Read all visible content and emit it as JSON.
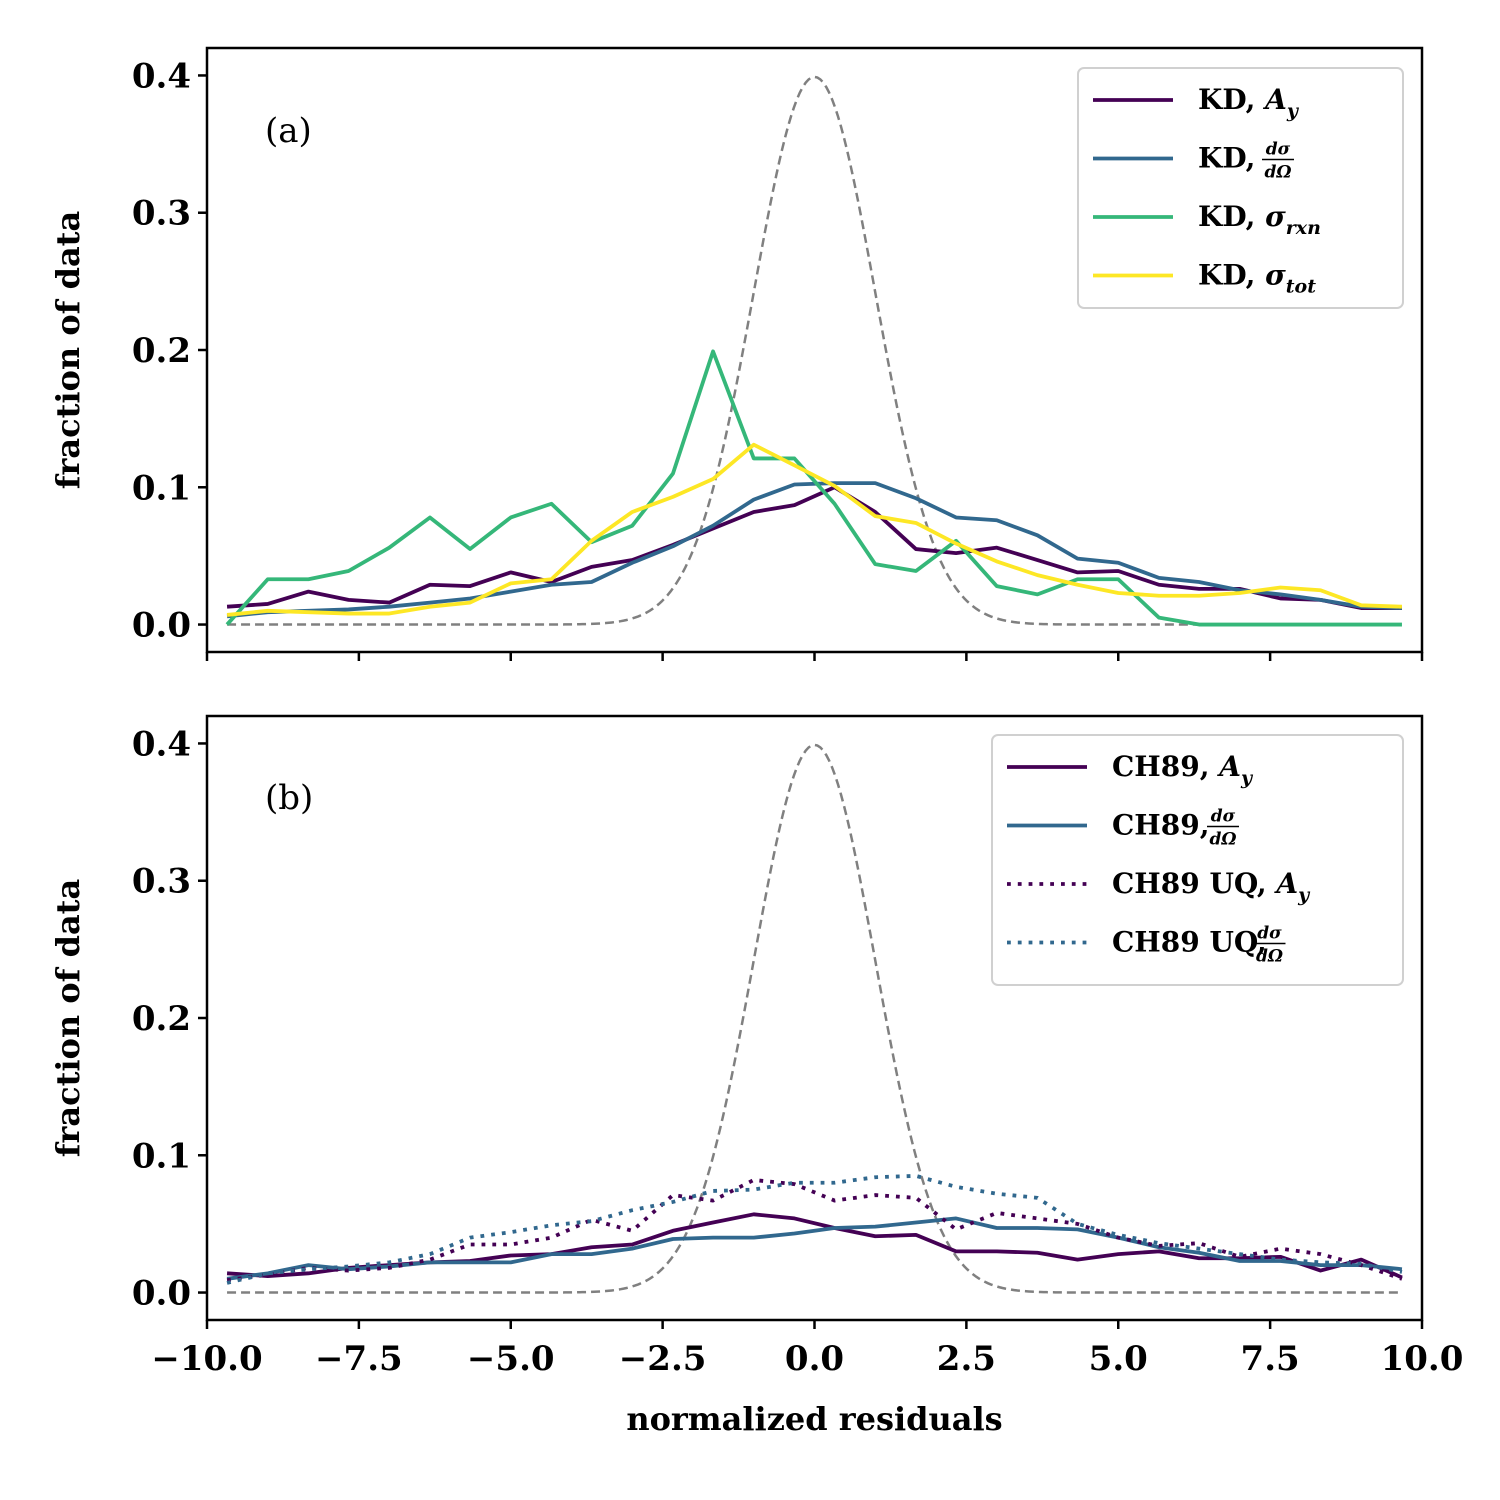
{
  "chart_data": [
    {
      "type": "line",
      "panel_label": "(a)",
      "xlabel": "",
      "ylabel": "fraction of data",
      "xlim": [
        -10,
        10
      ],
      "ylim": [
        -0.02,
        0.42
      ],
      "yticks": [
        0.0,
        0.1,
        0.2,
        0.3,
        0.4
      ],
      "ytick_labels": [
        "0.0",
        "0.1",
        "0.2",
        "0.3",
        "0.4"
      ],
      "xticks": [
        -10,
        -7.5,
        -5,
        -2.5,
        0,
        2.5,
        5,
        7.5,
        10
      ],
      "xtick_labels": [],
      "legend_position": "top-right",
      "series": [
        {
          "name": "KD, A_y",
          "legend": {
            "prefix": "KD, ",
            "sym": "A",
            "sub": "y"
          },
          "color": "#440154",
          "style": "solid",
          "x": [
            -9.67,
            -9.0,
            -8.33,
            -7.67,
            -7.0,
            -6.33,
            -5.67,
            -5.0,
            -4.33,
            -3.67,
            -3.0,
            -2.33,
            -1.67,
            -1.0,
            -0.33,
            0.33,
            1.0,
            1.67,
            2.33,
            3.0,
            3.67,
            4.33,
            5.0,
            5.67,
            6.33,
            7.0,
            7.67,
            8.33,
            9.0,
            9.67
          ],
          "values": [
            0.013,
            0.015,
            0.024,
            0.018,
            0.016,
            0.029,
            0.028,
            0.038,
            0.031,
            0.042,
            0.047,
            0.058,
            0.07,
            0.082,
            0.087,
            0.1,
            0.082,
            0.055,
            0.052,
            0.056,
            0.047,
            0.038,
            0.039,
            0.029,
            0.026,
            0.026,
            0.019,
            0.018,
            0.012,
            0.012
          ]
        },
        {
          "name": "KD, dσ/dΩ",
          "legend": {
            "prefix": "KD, ",
            "frac_num": "dσ",
            "frac_den": "dΩ"
          },
          "color": "#31688e",
          "style": "solid",
          "x": [
            -9.67,
            -9.0,
            -8.33,
            -7.67,
            -7.0,
            -6.33,
            -5.67,
            -5.0,
            -4.33,
            -3.67,
            -3.0,
            -2.33,
            -1.67,
            -1.0,
            -0.33,
            0.33,
            1.0,
            1.67,
            2.33,
            3.0,
            3.67,
            4.33,
            5.0,
            5.67,
            6.33,
            7.0,
            7.67,
            8.33,
            9.0,
            9.67
          ],
          "values": [
            0.006,
            0.009,
            0.01,
            0.011,
            0.013,
            0.016,
            0.019,
            0.024,
            0.029,
            0.031,
            0.045,
            0.057,
            0.072,
            0.091,
            0.102,
            0.103,
            0.103,
            0.092,
            0.078,
            0.076,
            0.065,
            0.048,
            0.045,
            0.034,
            0.031,
            0.025,
            0.022,
            0.018,
            0.013,
            0.012
          ]
        },
        {
          "name": "KD, σ_rxn",
          "legend": {
            "prefix": "KD, ",
            "sym": "σ",
            "sub": "rxn"
          },
          "color": "#35b779",
          "style": "solid",
          "x": [
            -9.67,
            -9.0,
            -8.33,
            -7.67,
            -7.0,
            -6.33,
            -5.67,
            -5.0,
            -4.33,
            -3.67,
            -3.0,
            -2.33,
            -1.67,
            -1.0,
            -0.33,
            0.33,
            1.0,
            1.67,
            2.33,
            3.0,
            3.67,
            4.33,
            5.0,
            5.67,
            6.33,
            7.0,
            7.67,
            8.33,
            9.0,
            9.67
          ],
          "values": [
            0.0,
            0.033,
            0.033,
            0.039,
            0.056,
            0.078,
            0.055,
            0.078,
            0.088,
            0.06,
            0.072,
            0.11,
            0.199,
            0.121,
            0.121,
            0.088,
            0.044,
            0.039,
            0.061,
            0.028,
            0.022,
            0.033,
            0.033,
            0.005,
            0.0,
            0.0,
            0.0,
            0.0,
            0.0,
            0.0
          ]
        },
        {
          "name": "KD, σ_tot",
          "legend": {
            "prefix": "KD, ",
            "sym": "σ",
            "sub": "tot"
          },
          "color": "#fde725",
          "style": "solid",
          "x": [
            -9.67,
            -9.0,
            -8.33,
            -7.67,
            -7.0,
            -6.33,
            -5.67,
            -5.0,
            -4.33,
            -3.67,
            -3.0,
            -2.33,
            -1.67,
            -1.0,
            -0.33,
            0.33,
            1.0,
            1.67,
            2.33,
            3.0,
            3.67,
            4.33,
            5.0,
            5.67,
            6.33,
            7.0,
            7.67,
            8.33,
            9.0,
            9.67
          ],
          "values": [
            0.007,
            0.01,
            0.009,
            0.008,
            0.008,
            0.013,
            0.016,
            0.03,
            0.033,
            0.061,
            0.082,
            0.093,
            0.106,
            0.131,
            0.116,
            0.101,
            0.079,
            0.074,
            0.059,
            0.046,
            0.036,
            0.029,
            0.023,
            0.021,
            0.021,
            0.023,
            0.027,
            0.025,
            0.014,
            0.013
          ]
        }
      ],
      "reference_curve": {
        "name": "standard normal",
        "color": "#808080",
        "style": "dashed"
      }
    },
    {
      "type": "line",
      "panel_label": "(b)",
      "xlabel": "normalized residuals",
      "ylabel": "fraction of data",
      "xlim": [
        -10,
        10
      ],
      "ylim": [
        -0.02,
        0.42
      ],
      "yticks": [
        0.0,
        0.1,
        0.2,
        0.3,
        0.4
      ],
      "ytick_labels": [
        "0.0",
        "0.1",
        "0.2",
        "0.3",
        "0.4"
      ],
      "xticks": [
        -10,
        -7.5,
        -5,
        -2.5,
        0,
        2.5,
        5,
        7.5,
        10
      ],
      "xtick_labels": [
        "−10.0",
        "−7.5",
        "−5.0",
        "−2.5",
        "0.0",
        "2.5",
        "5.0",
        "7.5",
        "10.0"
      ],
      "legend_position": "top-right",
      "series": [
        {
          "name": "CH89, A_y",
          "legend": {
            "prefix": "CH89, ",
            "sym": "A",
            "sub": "y"
          },
          "color": "#440154",
          "style": "solid",
          "x": [
            -9.67,
            -9.0,
            -8.33,
            -7.67,
            -7.0,
            -6.33,
            -5.67,
            -5.0,
            -4.33,
            -3.67,
            -3.0,
            -2.33,
            -1.67,
            -1.0,
            -0.33,
            0.33,
            1.0,
            1.67,
            2.33,
            3.0,
            3.67,
            4.33,
            5.0,
            5.67,
            6.33,
            7.0,
            7.67,
            8.33,
            9.0,
            9.67
          ],
          "values": [
            0.014,
            0.012,
            0.014,
            0.018,
            0.02,
            0.022,
            0.023,
            0.027,
            0.028,
            0.033,
            0.035,
            0.045,
            0.051,
            0.057,
            0.054,
            0.047,
            0.041,
            0.042,
            0.03,
            0.03,
            0.029,
            0.024,
            0.028,
            0.03,
            0.025,
            0.025,
            0.026,
            0.016,
            0.024,
            0.011
          ]
        },
        {
          "name": "CH89, dσ/dΩ",
          "legend": {
            "prefix": "CH89, ",
            "frac_num": "dσ",
            "frac_den": "dΩ"
          },
          "color": "#31688e",
          "style": "solid",
          "x": [
            -9.67,
            -9.0,
            -8.33,
            -7.67,
            -7.0,
            -6.33,
            -5.67,
            -5.0,
            -4.33,
            -3.67,
            -3.0,
            -2.33,
            -1.67,
            -1.0,
            -0.33,
            0.33,
            1.0,
            1.67,
            2.33,
            3.0,
            3.67,
            4.33,
            5.0,
            5.67,
            6.33,
            7.0,
            7.67,
            8.33,
            9.0,
            9.67
          ],
          "values": [
            0.01,
            0.014,
            0.02,
            0.017,
            0.019,
            0.022,
            0.022,
            0.022,
            0.028,
            0.028,
            0.032,
            0.039,
            0.04,
            0.04,
            0.043,
            0.047,
            0.048,
            0.051,
            0.054,
            0.047,
            0.047,
            0.046,
            0.04,
            0.033,
            0.029,
            0.023,
            0.023,
            0.02,
            0.02,
            0.017
          ]
        },
        {
          "name": "CH89 UQ, A_y",
          "legend": {
            "prefix": "CH89 UQ, ",
            "sym": "A",
            "sub": "y"
          },
          "color": "#440154",
          "style": "dotted",
          "x": [
            -9.67,
            -9.0,
            -8.33,
            -7.67,
            -7.0,
            -6.33,
            -5.67,
            -5.0,
            -4.33,
            -3.67,
            -3.0,
            -2.33,
            -1.67,
            -1.0,
            -0.33,
            0.33,
            1.0,
            1.67,
            2.33,
            3.0,
            3.67,
            4.33,
            5.0,
            5.67,
            6.33,
            7.0,
            7.67,
            8.33,
            9.0,
            9.67
          ],
          "values": [
            0.009,
            0.013,
            0.018,
            0.016,
            0.018,
            0.024,
            0.035,
            0.035,
            0.04,
            0.053,
            0.045,
            0.071,
            0.067,
            0.082,
            0.079,
            0.067,
            0.071,
            0.069,
            0.046,
            0.058,
            0.054,
            0.05,
            0.04,
            0.034,
            0.036,
            0.026,
            0.032,
            0.028,
            0.02,
            0.01
          ]
        },
        {
          "name": "CH89 UQ, dσ/dΩ",
          "legend": {
            "prefix": "CH89 UQ, ",
            "frac_num": "dσ",
            "frac_den": "dΩ"
          },
          "color": "#31688e",
          "style": "dotted",
          "x": [
            -9.67,
            -9.0,
            -8.33,
            -7.67,
            -7.0,
            -6.33,
            -5.67,
            -5.0,
            -4.33,
            -3.67,
            -3.0,
            -2.33,
            -1.67,
            -1.0,
            -0.33,
            0.33,
            1.0,
            1.67,
            2.33,
            3.0,
            3.67,
            4.33,
            5.0,
            5.67,
            6.33,
            7.0,
            7.67,
            8.33,
            9.0,
            9.67
          ],
          "values": [
            0.007,
            0.014,
            0.017,
            0.019,
            0.022,
            0.028,
            0.04,
            0.044,
            0.049,
            0.052,
            0.06,
            0.066,
            0.074,
            0.075,
            0.08,
            0.08,
            0.084,
            0.085,
            0.077,
            0.072,
            0.069,
            0.05,
            0.042,
            0.036,
            0.032,
            0.028,
            0.024,
            0.022,
            0.021,
            0.015
          ]
        }
      ],
      "reference_curve": {
        "name": "standard normal",
        "color": "#808080",
        "style": "dashed"
      }
    }
  ]
}
